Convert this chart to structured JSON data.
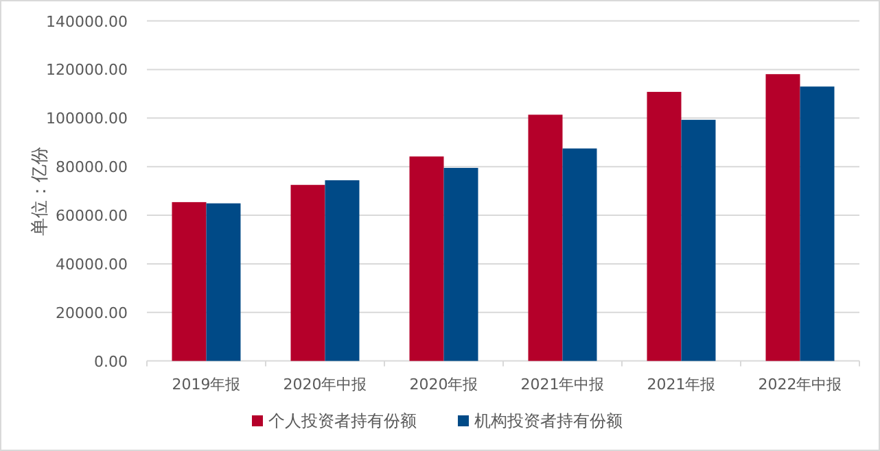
{
  "chart_data": {
    "type": "bar",
    "ylabel": "单位：亿份",
    "categories": [
      "2019年报",
      "2020年中报",
      "2020年报",
      "2021年中报",
      "2021年报",
      "2022年中报"
    ],
    "series": [
      {
        "name": "个人投资者持有份额",
        "color": "#b5002a",
        "values": [
          65400,
          72500,
          84200,
          101400,
          110800,
          118100
        ]
      },
      {
        "name": "机构投资者持有份额",
        "color": "#004a87",
        "values": [
          64900,
          74400,
          79500,
          87500,
          99300,
          113000
        ]
      }
    ],
    "ylim": [
      0,
      140000
    ],
    "yticks": [
      {
        "value": 0,
        "label": "0.00"
      },
      {
        "value": 20000,
        "label": "20000.00"
      },
      {
        "value": 40000,
        "label": "40000.00"
      },
      {
        "value": 60000,
        "label": "60000.00"
      },
      {
        "value": 80000,
        "label": "80000.00"
      },
      {
        "value": 100000,
        "label": "100000.00"
      },
      {
        "value": 120000,
        "label": "120000.00"
      },
      {
        "value": 140000,
        "label": "140000.00"
      }
    ],
    "grid": "y",
    "legend": "bottom"
  }
}
